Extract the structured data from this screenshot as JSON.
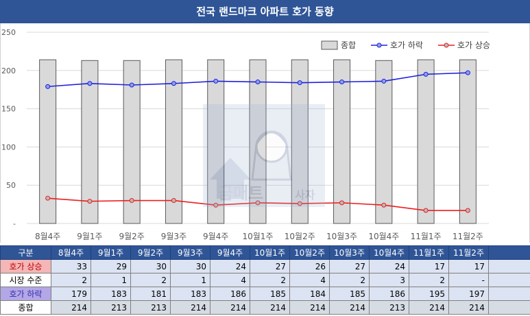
{
  "title": "전국 랜드마크 아파트 호가 동향",
  "chart_data": {
    "type": "bar",
    "categories": [
      "8월4주",
      "9월1주",
      "9월2주",
      "9월3주",
      "9월4주",
      "10월1주",
      "10월2주",
      "10월3주",
      "10월4주",
      "11월1주",
      "11월2주"
    ],
    "series": [
      {
        "name": "종합",
        "type": "bar",
        "color": "#d9d9d9",
        "values": [
          214,
          213,
          213,
          214,
          214,
          214,
          214,
          214,
          213,
          214,
          214
        ]
      },
      {
        "name": "호가 하락",
        "type": "line",
        "color": "#1f1fe0",
        "values": [
          179,
          183,
          181,
          183,
          186,
          185,
          184,
          185,
          186,
          195,
          197
        ]
      },
      {
        "name": "호가 상승",
        "type": "line",
        "color": "#ee1c1c",
        "values": [
          33,
          29,
          30,
          30,
          24,
          27,
          26,
          27,
          24,
          17,
          17
        ]
      }
    ],
    "y_ticks": [
      "250",
      "200",
      "150",
      "100",
      "50",
      "-"
    ],
    "ylim": [
      0,
      250
    ],
    "grid": true,
    "legend": "top-right"
  },
  "table": {
    "header": [
      "구분",
      "8월4주",
      "9월1주",
      "9월2주",
      "9월3주",
      "9월4주",
      "10월1주",
      "10월2주",
      "10월3주",
      "10월4주",
      "11월1주",
      "11월2주"
    ],
    "rows": [
      {
        "cls": "rise",
        "label": "호가 상승",
        "values": [
          "33",
          "29",
          "30",
          "30",
          "24",
          "27",
          "26",
          "27",
          "24",
          "17",
          "17"
        ]
      },
      {
        "cls": "mkt",
        "label": "시장 수준",
        "values": [
          "2",
          "1",
          "2",
          "1",
          "4",
          "2",
          "4",
          "2",
          "3",
          "2",
          "-"
        ]
      },
      {
        "cls": "fall",
        "label": "호가 하락",
        "values": [
          "179",
          "183",
          "181",
          "183",
          "186",
          "185",
          "184",
          "185",
          "186",
          "195",
          "197"
        ]
      },
      {
        "cls": "tot",
        "label": "종합",
        "values": [
          "214",
          "213",
          "213",
          "214",
          "214",
          "214",
          "214",
          "214",
          "213",
          "214",
          "214"
        ]
      }
    ]
  },
  "watermark": {
    "text": "금매트",
    "text2": "사자",
    "icon": "woman-house-logo"
  }
}
